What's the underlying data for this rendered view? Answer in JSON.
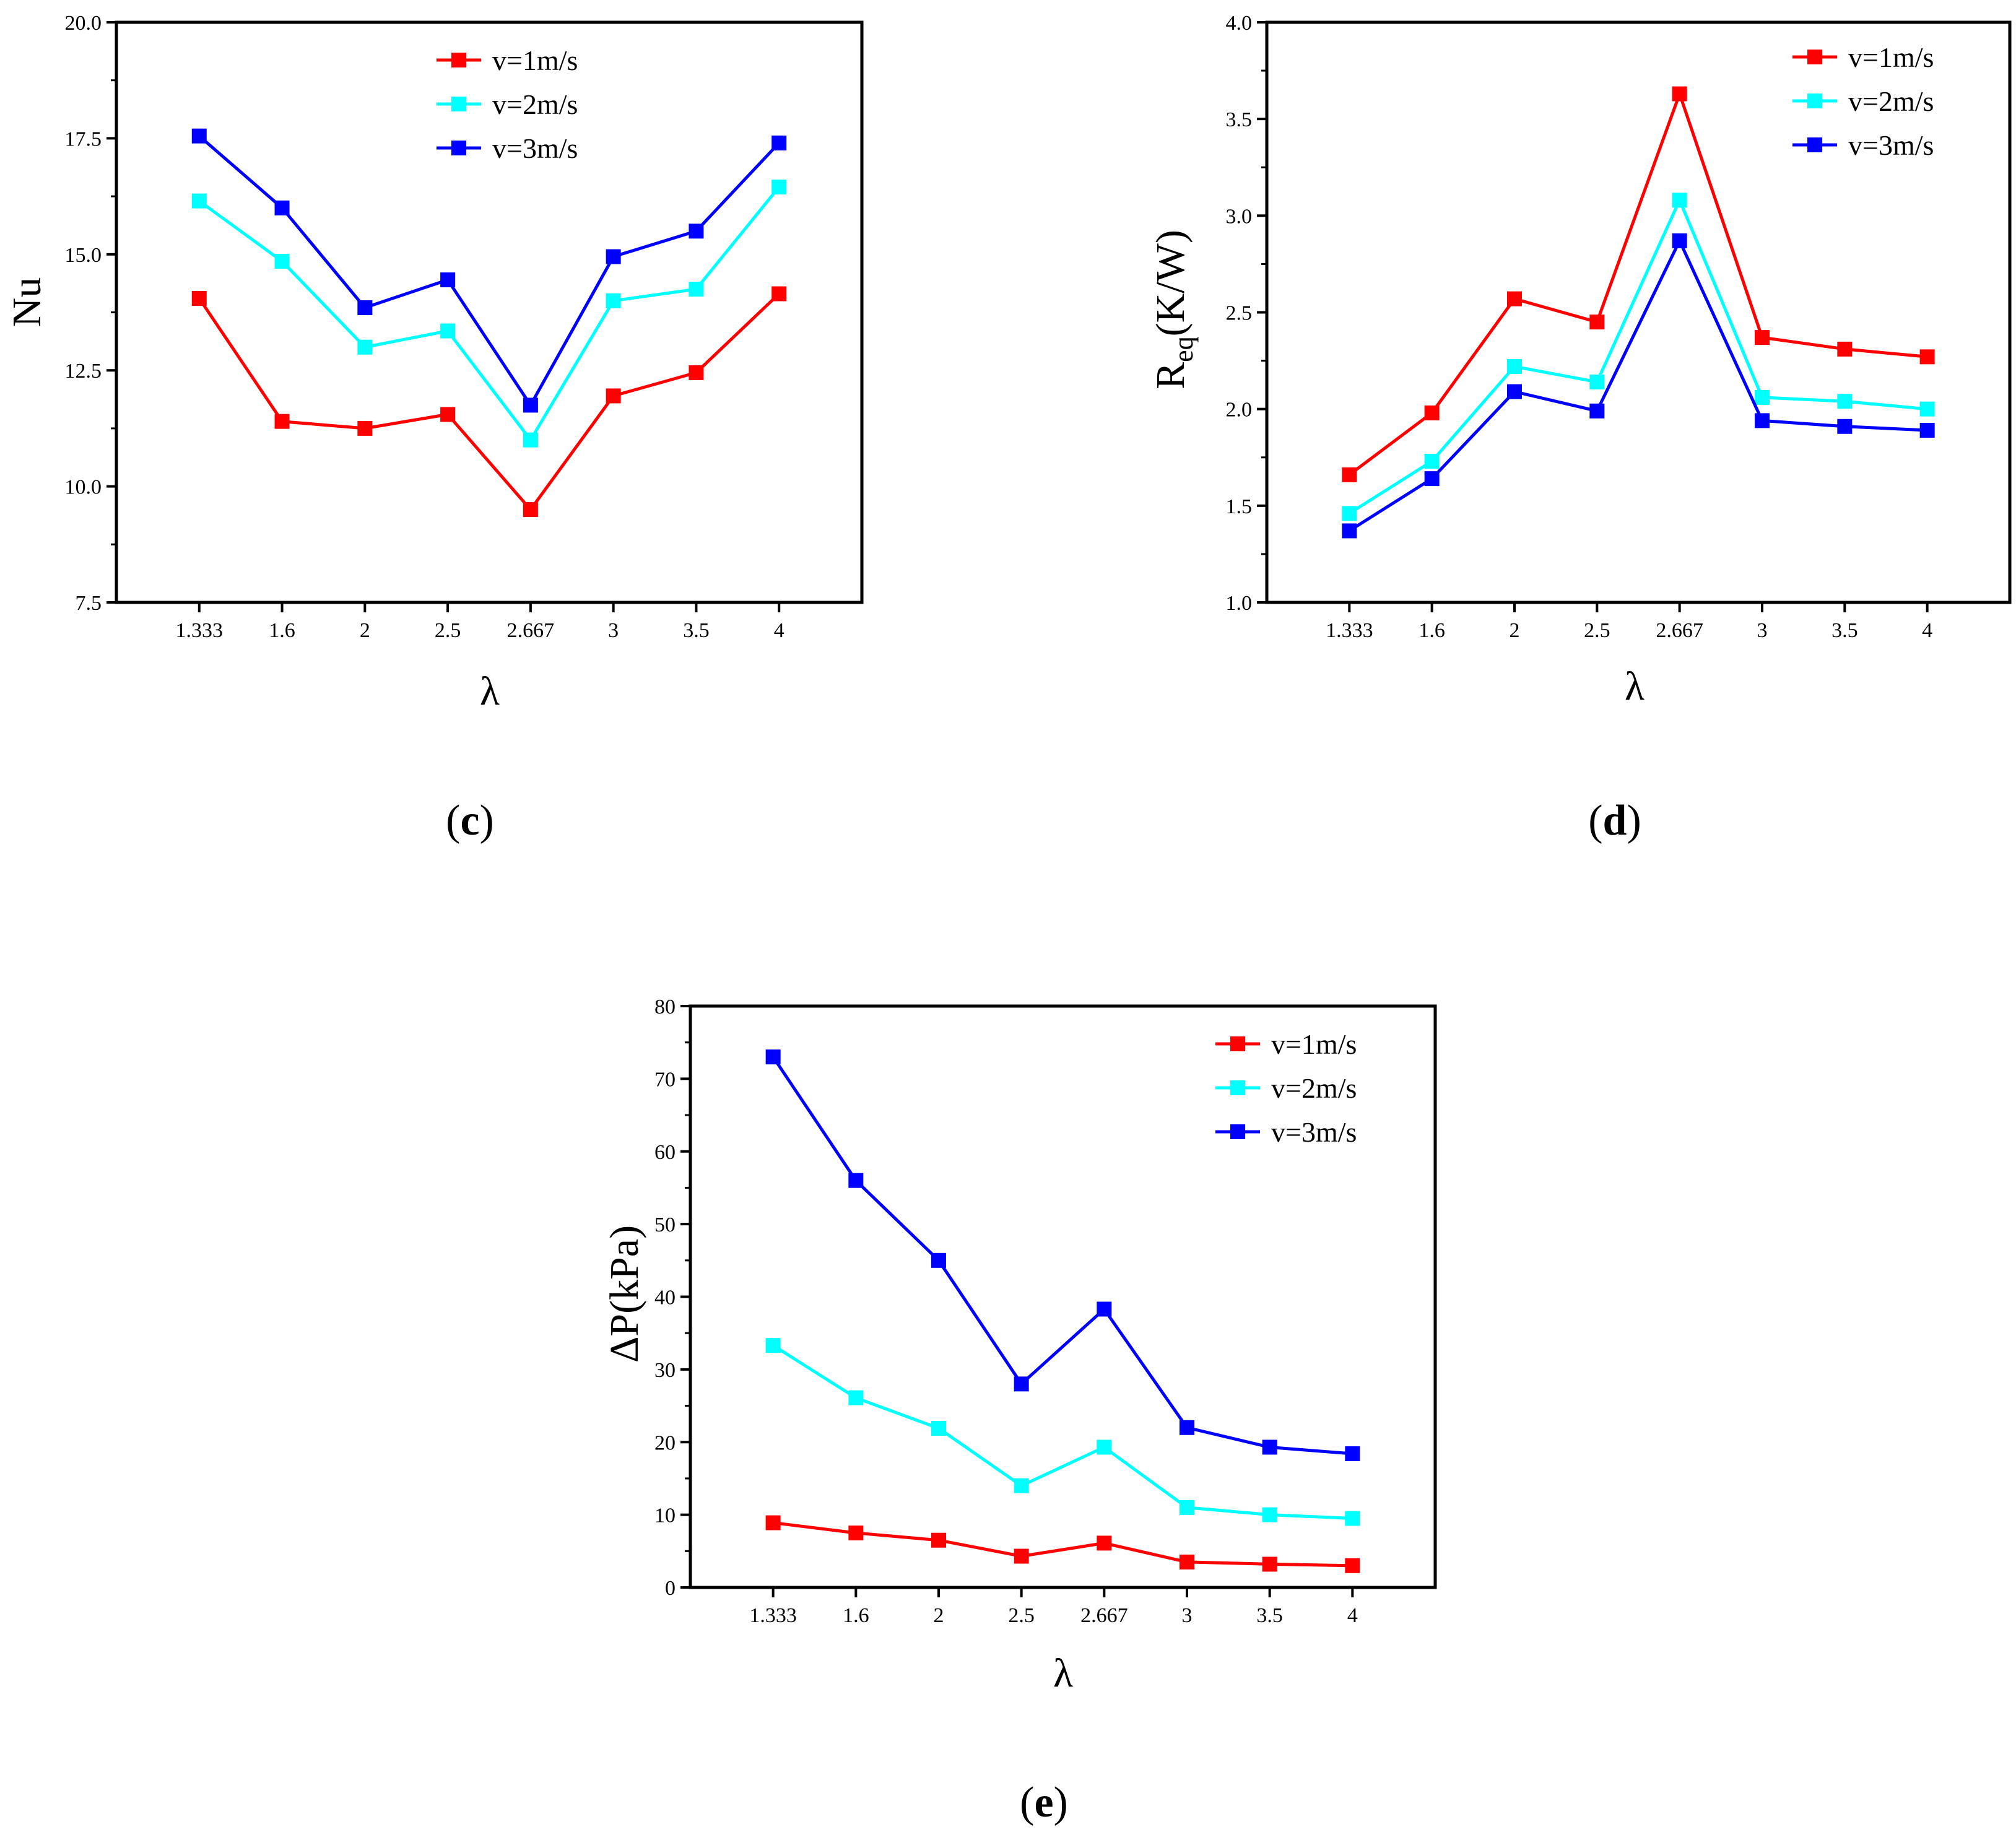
{
  "chart_data": [
    {
      "id": "c",
      "panel_label": "c",
      "type": "line",
      "xlabel": "λ",
      "ylabel": "Nu",
      "categories": [
        "1.333",
        "1.6",
        "2",
        "2.5",
        "2.667",
        "3",
        "3.5",
        "4"
      ],
      "ylim": [
        7.5,
        20.0
      ],
      "yticks": [
        "7.5",
        "10.0",
        "12.5",
        "15.0",
        "17.5",
        "20.0"
      ],
      "legend_position": "top-right",
      "series": [
        {
          "name": "v=1m/s",
          "color": "#ff0000",
          "values": [
            14.05,
            11.4,
            11.25,
            11.55,
            9.5,
            11.95,
            12.45,
            14.15
          ]
        },
        {
          "name": "v=2m/s",
          "color": "#00ffff",
          "values": [
            16.15,
            14.85,
            13.0,
            13.35,
            11.0,
            14.0,
            14.25,
            16.45
          ]
        },
        {
          "name": "v=3m/s",
          "color": "#0000ff",
          "values": [
            17.55,
            16.0,
            13.85,
            14.45,
            11.75,
            14.95,
            15.5,
            17.4
          ]
        }
      ]
    },
    {
      "id": "d",
      "panel_label": "d",
      "type": "line",
      "xlabel": "λ",
      "ylabel_main": "R",
      "ylabel_sub": "eq",
      "ylabel_unit": "(K/W)",
      "categories": [
        "1.333",
        "1.6",
        "2",
        "2.5",
        "2.667",
        "3",
        "3.5",
        "4"
      ],
      "ylim": [
        1.0,
        4.0
      ],
      "yticks": [
        "1.0",
        "1.5",
        "2.0",
        "2.5",
        "3.0",
        "3.5",
        "4.0"
      ],
      "legend_position": "top-right",
      "series": [
        {
          "name": "v=1m/s",
          "color": "#ff0000",
          "values": [
            1.66,
            1.98,
            2.57,
            2.45,
            3.63,
            2.37,
            2.31,
            2.27
          ]
        },
        {
          "name": "v=2m/s",
          "color": "#00ffff",
          "values": [
            1.46,
            1.73,
            2.22,
            2.14,
            3.08,
            2.06,
            2.04,
            2.0
          ]
        },
        {
          "name": "v=3m/s",
          "color": "#0000ff",
          "values": [
            1.37,
            1.64,
            2.09,
            1.99,
            2.87,
            1.94,
            1.91,
            1.89
          ]
        }
      ]
    },
    {
      "id": "e",
      "panel_label": "e",
      "type": "line",
      "xlabel": "λ",
      "ylabel": "ΔP(kPa)",
      "categories": [
        "1.333",
        "1.6",
        "2",
        "2.5",
        "2.667",
        "3",
        "3.5",
        "4"
      ],
      "ylim": [
        0,
        80
      ],
      "yticks": [
        "0",
        "10",
        "20",
        "30",
        "40",
        "50",
        "60",
        "70",
        "80"
      ],
      "legend_position": "top-right",
      "series": [
        {
          "name": "v=1m/s",
          "color": "#ff0000",
          "values": [
            8.9,
            7.5,
            6.5,
            4.3,
            6.1,
            3.5,
            3.2,
            3.0
          ]
        },
        {
          "name": "v=2m/s",
          "color": "#00ffff",
          "values": [
            33.3,
            26.1,
            21.9,
            14.0,
            19.3,
            11.0,
            10.0,
            9.5
          ]
        },
        {
          "name": "v=3m/s",
          "color": "#0000ff",
          "values": [
            73.0,
            56.0,
            45.0,
            28.0,
            38.3,
            22.0,
            19.3,
            18.4
          ]
        }
      ]
    }
  ]
}
